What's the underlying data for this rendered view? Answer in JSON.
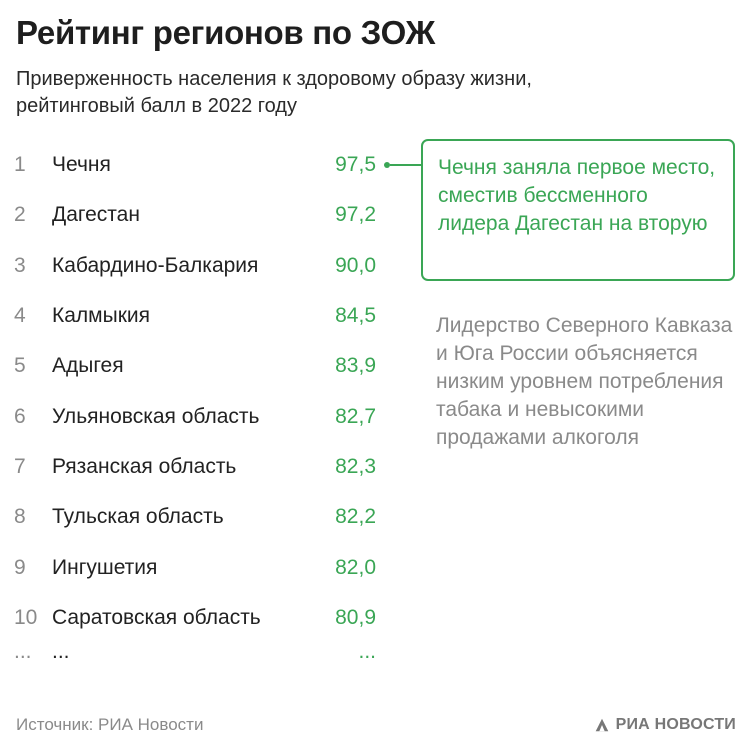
{
  "title": "Рейтинг регионов по ЗОЖ",
  "subtitle": "Приверженность населения к здоровому образу жизни, рейтинговый балл в 2022 году",
  "colors": {
    "accent": "#3aa655",
    "muted": "#8a8a8a",
    "text": "#222222"
  },
  "chart_data": {
    "type": "table",
    "columns": [
      "rank",
      "region",
      "score"
    ],
    "rows": [
      {
        "rank": "1",
        "region": "Чечня",
        "value": "97,5"
      },
      {
        "rank": "2",
        "region": "Дагестан",
        "value": "97,2"
      },
      {
        "rank": "3",
        "region": "Кабардино-Балкария",
        "value": "90,0"
      },
      {
        "rank": "4",
        "region": "Калмыкия",
        "value": "84,5"
      },
      {
        "rank": "5",
        "region": "Адыгея",
        "value": "83,9"
      },
      {
        "rank": "6",
        "region": "Ульяновская область",
        "value": "82,7"
      },
      {
        "rank": "7",
        "region": "Рязанская область",
        "value": "82,3"
      },
      {
        "rank": "8",
        "region": "Тульская область",
        "value": "82,2"
      },
      {
        "rank": "9",
        "region": "Ингушетия",
        "value": "82,0"
      },
      {
        "rank": "10",
        "region": "Саратовская область",
        "value": "80,9"
      },
      {
        "rank": "...",
        "region": "...",
        "value": "..."
      }
    ]
  },
  "callout": {
    "text": "Чечня заняла первое место, сместив бессменного лидера Дагестан на вторую"
  },
  "note": "Лидерство Северного Кавказа и Юга России объясняется низким уровнем потребления табака и невысокими продажами алкоголя",
  "source": "Источник: РИА Новости",
  "logo": {
    "text": "РИА НОВОСТИ",
    "icon": "ria-logo-icon"
  }
}
